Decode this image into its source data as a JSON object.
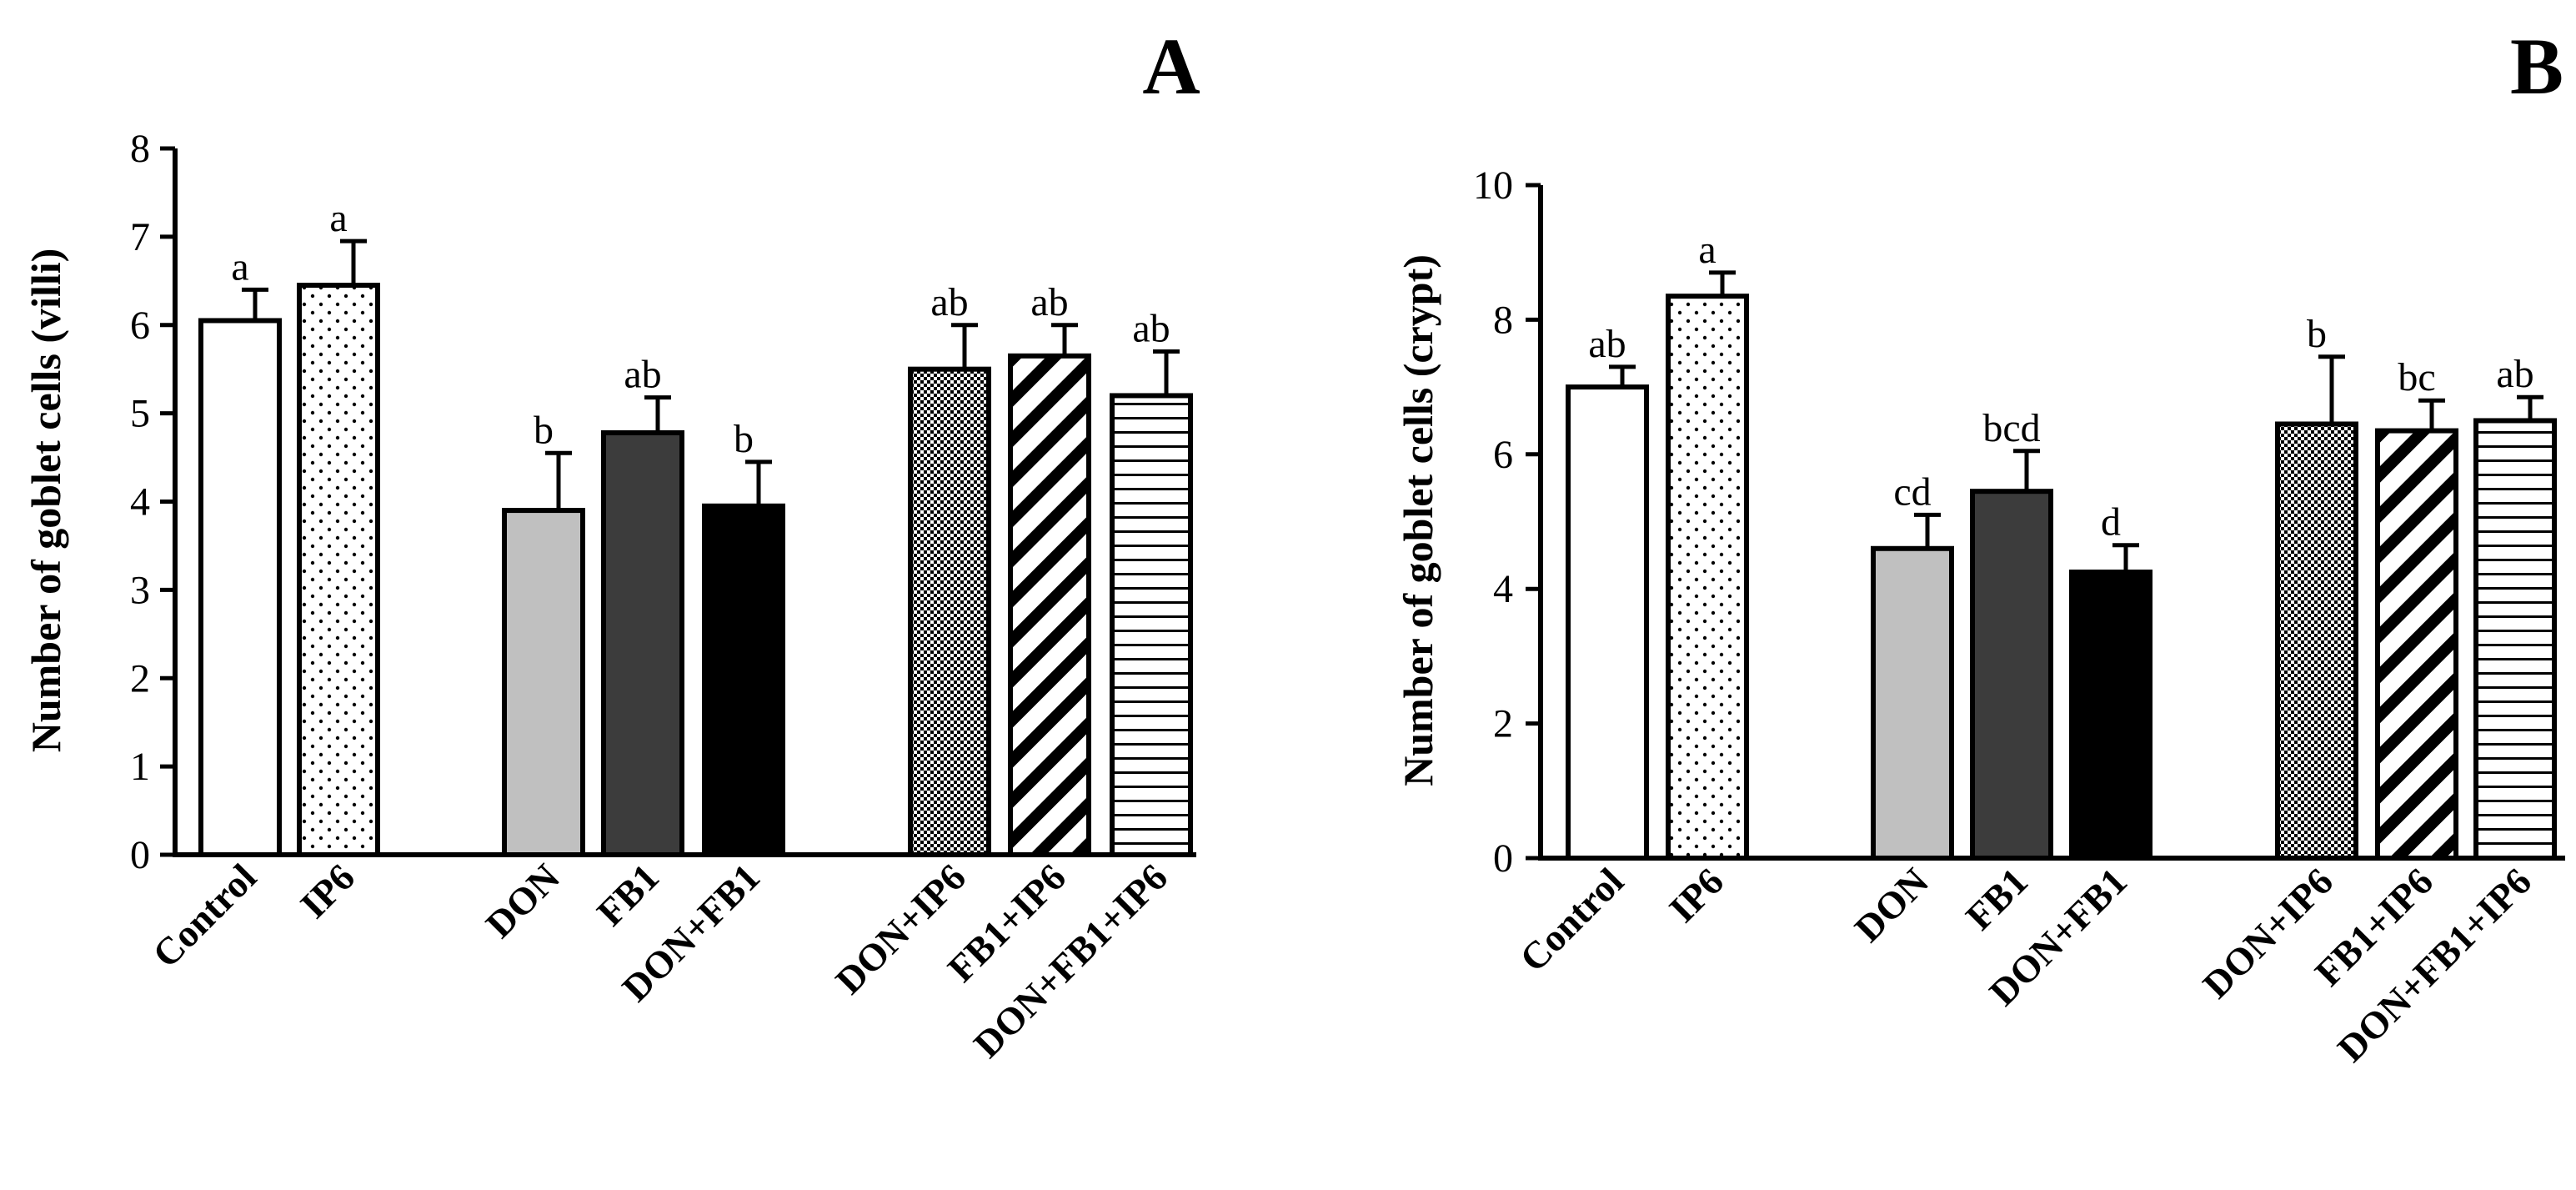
{
  "chart_data": [
    {
      "type": "bar",
      "panel_label": "A",
      "ylabel": "Number of goblet cells  (villi)",
      "ylim": [
        0,
        8
      ],
      "yticks": [
        "0",
        "1",
        "2",
        "3",
        "4",
        "5",
        "6",
        "7",
        "8"
      ],
      "categories": [
        "Control",
        "IP6",
        "DON",
        "FB1",
        "DON+FB1",
        "DON+IP6",
        "FB1+IP6",
        "DON+FB1+IP6"
      ],
      "values": [
        6.05,
        6.45,
        3.9,
        4.78,
        3.95,
        5.5,
        5.65,
        5.2
      ],
      "errors": [
        0.35,
        0.5,
        0.65,
        0.4,
        0.5,
        0.5,
        0.35,
        0.5
      ],
      "letters": [
        "a",
        "a",
        "b",
        "ab",
        "b",
        "ab",
        "ab",
        "ab"
      ]
    },
    {
      "type": "bar",
      "panel_label": "B",
      "ylabel": "Number of goblet cells (crypt)",
      "ylim": [
        0,
        10
      ],
      "yticks": [
        "0",
        "2",
        "4",
        "6",
        "8",
        "10"
      ],
      "categories": [
        "Control",
        "IP6",
        "DON",
        "FB1",
        "DON+FB1",
        "DON+IP6",
        "FB1+IP6",
        "DON+FB1+IP6"
      ],
      "values": [
        7.0,
        8.35,
        4.6,
        5.45,
        4.25,
        6.45,
        6.35,
        6.5
      ],
      "errors": [
        0.3,
        0.35,
        0.5,
        0.6,
        0.4,
        1.0,
        0.45,
        0.35
      ],
      "letters": [
        "ab",
        "a",
        "cd",
        "bcd",
        "d",
        "b",
        "bc",
        "ab"
      ]
    }
  ],
  "series_fills": [
    "white",
    "dots",
    "#c0c0c0",
    "#3c3c3c",
    "#000000",
    "checker",
    "diag",
    "hlines"
  ]
}
